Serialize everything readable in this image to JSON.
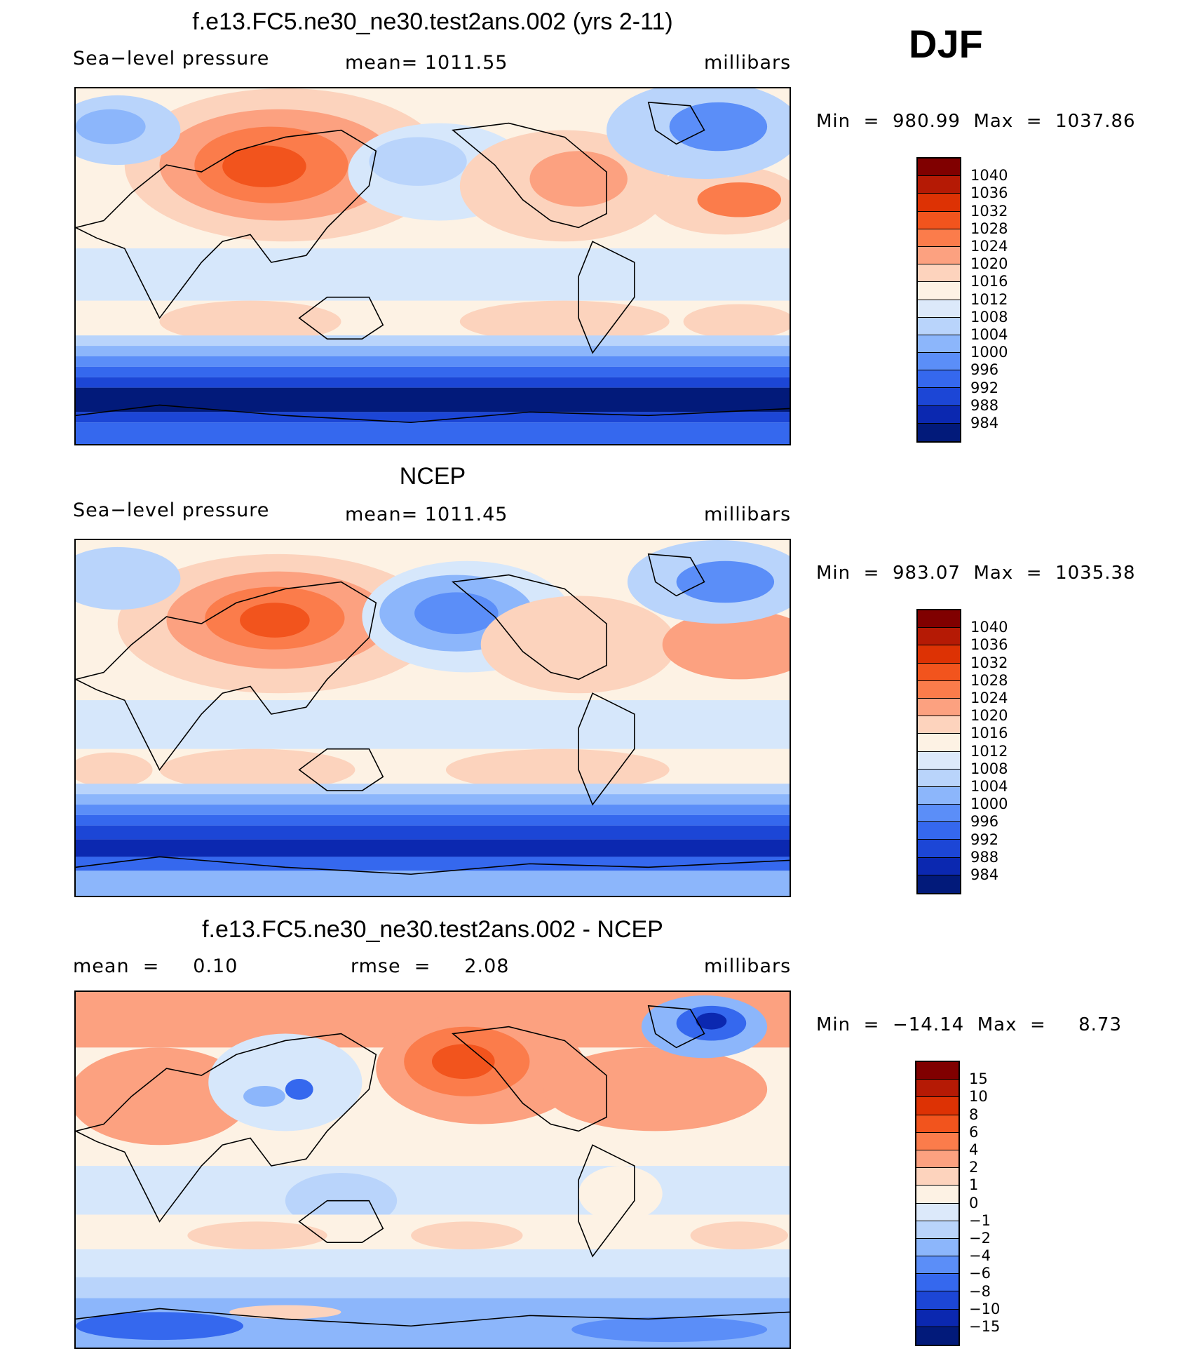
{
  "season": "DJF",
  "units": "millibars",
  "panels": [
    {
      "title": "f.e13.FC5.ne30_ne30.test2ans.002 (yrs 2-11)",
      "left_label": "Sea−level pressure",
      "center_label": "mean=  1011.55",
      "right_label": "millibars",
      "minmax": "Min  =  980.99  Max  =  1037.86",
      "map_description": "Model DJF sea-level pressure field",
      "colorbar": {
        "labels": [
          "1040",
          "1036",
          "1032",
          "1028",
          "1024",
          "1020",
          "1016",
          "1012",
          "1008",
          "1004",
          "1000",
          "996",
          "992",
          "988",
          "984"
        ],
        "colors": [
          "#800000",
          "#b51a05",
          "#dd3204",
          "#f2541d",
          "#fb7c4b",
          "#fca180",
          "#fdd3bd",
          "#fdf2e4",
          "#dce9fa",
          "#b9d4fb",
          "#8cb6fb",
          "#5b8ef8",
          "#3568ee",
          "#1c46d6",
          "#0b28b0",
          "#021a7a"
        ]
      }
    },
    {
      "title": "NCEP",
      "left_label": "Sea−level pressure",
      "center_label": "mean=  1011.45",
      "right_label": "millibars",
      "minmax": "Min  =  983.07  Max  =  1035.38",
      "map_description": "NCEP reanalysis DJF sea-level pressure field",
      "colorbar": {
        "labels": [
          "1040",
          "1036",
          "1032",
          "1028",
          "1024",
          "1020",
          "1016",
          "1012",
          "1008",
          "1004",
          "1000",
          "996",
          "992",
          "988",
          "984"
        ],
        "colors": [
          "#800000",
          "#b51a05",
          "#dd3204",
          "#f2541d",
          "#fb7c4b",
          "#fca180",
          "#fdd3bd",
          "#fdf2e4",
          "#dce9fa",
          "#b9d4fb",
          "#8cb6fb",
          "#5b8ef8",
          "#3568ee",
          "#1c46d6",
          "#0b28b0",
          "#021a7a"
        ]
      }
    },
    {
      "title": "f.e13.FC5.ne30_ne30.test2ans.002 - NCEP",
      "left_label": "mean  =     0.10",
      "center_label": "rmse  =     2.08",
      "right_label": "millibars",
      "minmax": "Min  =  −14.14  Max  =     8.73",
      "map_description": "Difference map (model minus NCEP)",
      "colorbar": {
        "labels": [
          "15",
          "10",
          "8",
          "6",
          "4",
          "2",
          "1",
          "0",
          "−1",
          "−2",
          "−4",
          "−6",
          "−8",
          "−10",
          "−15"
        ],
        "colors": [
          "#800000",
          "#b51a05",
          "#dd3204",
          "#f2541d",
          "#fb7c4b",
          "#fca180",
          "#fdd3bd",
          "#fdf2e4",
          "#dce9fa",
          "#b9d4fb",
          "#8cb6fb",
          "#5b8ef8",
          "#3568ee",
          "#1c46d6",
          "#0b28b0",
          "#021a7a"
        ]
      }
    }
  ]
}
